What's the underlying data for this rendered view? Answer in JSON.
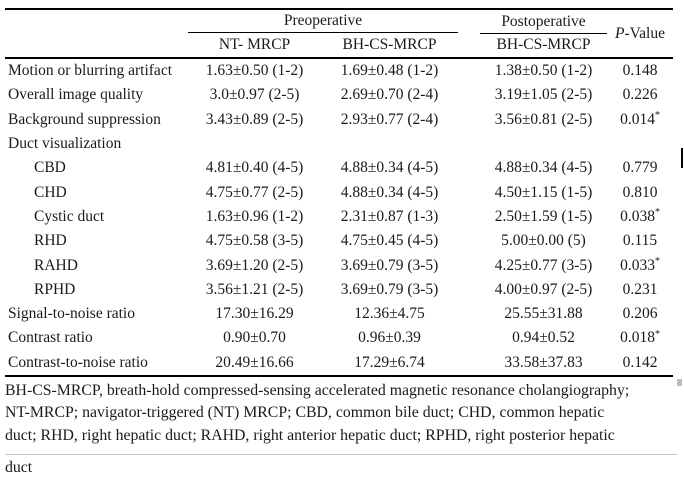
{
  "table": {
    "header": {
      "preoperative": "Preoperative",
      "postoperative": "Postoperative",
      "nt_mrcp": "NT- MRCP",
      "bh_cs_pre": "BH-CS-MRCP",
      "bh_cs_post": "BH-CS-MRCP",
      "p_italic": "P",
      "p_rest": "-Value"
    },
    "rows": [
      {
        "label": "Motion or blurring artifact",
        "type": "data",
        "indent": false,
        "nt_mrcp": "1.63±0.50 (1-2)",
        "bh_cs_pre": "1.69±0.48 (1-2)",
        "bh_cs_post": "1.38±0.50 (1-2)",
        "p": "0.148",
        "star": ""
      },
      {
        "label": "Overall image quality",
        "type": "data",
        "indent": false,
        "nt_mrcp": "3.0±0.97 (2-5)",
        "bh_cs_pre": "2.69±0.70 (2-4)",
        "bh_cs_post": "3.19±1.05 (2-5)",
        "p": "0.226",
        "star": ""
      },
      {
        "label": "Background suppression",
        "type": "data",
        "indent": false,
        "nt_mrcp": "3.43±0.89 (2-5)",
        "bh_cs_pre": "2.93±0.77 (2-4)",
        "bh_cs_post": "3.56±0.81 (2-5)",
        "p": "0.014",
        "star": "*"
      },
      {
        "label": "Duct visualization",
        "type": "section",
        "indent": false,
        "nt_mrcp": "",
        "bh_cs_pre": "",
        "bh_cs_post": "",
        "p": "",
        "star": ""
      },
      {
        "label": "CBD",
        "type": "data",
        "indent": true,
        "nt_mrcp": "4.81±0.40 (4-5)",
        "bh_cs_pre": "4.88±0.34 (4-5)",
        "bh_cs_post": "4.88±0.34 (4-5)",
        "p": "0.779",
        "star": ""
      },
      {
        "label": "CHD",
        "type": "data",
        "indent": true,
        "nt_mrcp": "4.75±0.77 (2-5)",
        "bh_cs_pre": "4.88±0.34 (4-5)",
        "bh_cs_post": "4.50±1.15 (1-5)",
        "p": "0.810",
        "star": ""
      },
      {
        "label": "Cystic duct",
        "type": "data",
        "indent": true,
        "nt_mrcp": "1.63±0.96 (1-2)",
        "bh_cs_pre": "2.31±0.87 (1-3)",
        "bh_cs_post": "2.50±1.59 (1-5)",
        "p": "0.038",
        "star": "*"
      },
      {
        "label": "RHD",
        "type": "data",
        "indent": true,
        "nt_mrcp": "4.75±0.58 (3-5)",
        "bh_cs_pre": "4.75±0.45 (4-5)",
        "bh_cs_post": "5.00±0.00 (5)",
        "p": "0.115",
        "star": ""
      },
      {
        "label": "RAHD",
        "type": "data",
        "indent": true,
        "nt_mrcp": "3.69±1.20 (2-5)",
        "bh_cs_pre": "3.69±0.79 (3-5)",
        "bh_cs_post": "4.25±0.77 (3-5)",
        "p": "0.033",
        "star": "*"
      },
      {
        "label": "RPHD",
        "type": "data",
        "indent": true,
        "nt_mrcp": "3.56±1.21 (2-5)",
        "bh_cs_pre": "3.69±0.79 (3-5)",
        "bh_cs_post": "4.00±0.97 (2-5)",
        "p": "0.231",
        "star": ""
      },
      {
        "label": "Signal-to-noise ratio",
        "type": "data",
        "indent": false,
        "nt_mrcp": "17.30±16.29",
        "bh_cs_pre": "12.36±4.75",
        "bh_cs_post": "25.55±31.88",
        "p": "0.206",
        "star": ""
      },
      {
        "label": "Contrast ratio",
        "type": "data",
        "indent": false,
        "nt_mrcp": "0.90±0.70",
        "bh_cs_pre": "0.96±0.39",
        "bh_cs_post": "0.94±0.52",
        "p": "0.018",
        "star": "*"
      },
      {
        "label": "Contrast-to-noise ratio",
        "type": "data",
        "indent": false,
        "nt_mrcp": "20.49±16.66",
        "bh_cs_pre": "17.29±6.74",
        "bh_cs_post": "33.58±37.83",
        "p": "0.142",
        "star": ""
      }
    ]
  },
  "footnote": {
    "lines": [
      "BH-CS-MRCP, breath-hold compressed-sensing accelerated magnetic resonance cholangiography;",
      "NT-MRCP; navigator-triggered (NT) MRCP; CBD, common bile duct; CHD, common hepatic",
      "duct; RHD, right hepatic duct; RAHD, right anterior hepatic duct; RPHD, right posterior hepatic",
      "duct"
    ]
  }
}
